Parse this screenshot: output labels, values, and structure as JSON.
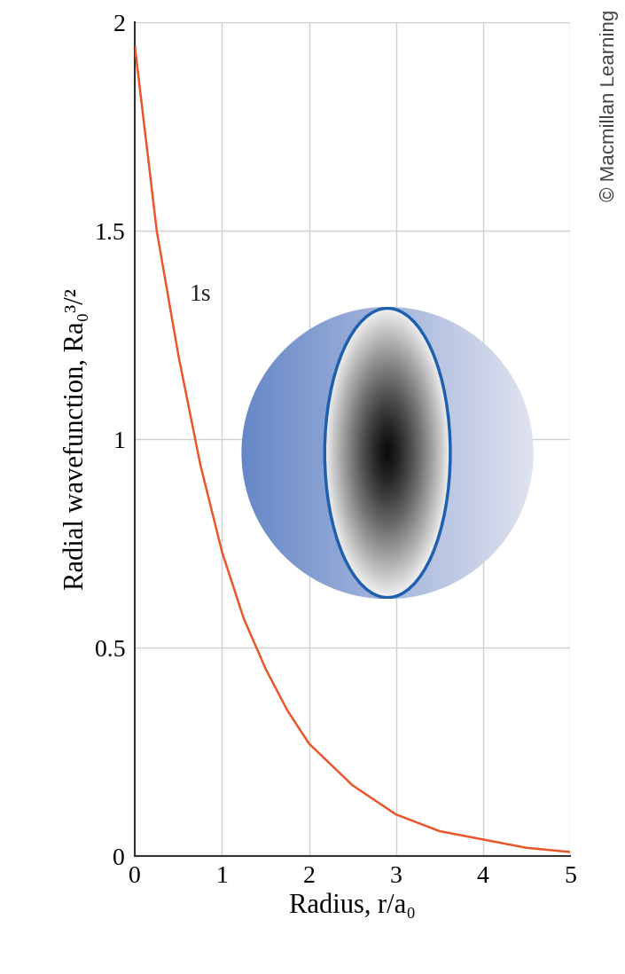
{
  "chart_data": {
    "type": "line",
    "x_label": "Radius, r/a₀",
    "y_label": "Radial wavefunction, Ra₀³/²",
    "x": [
      0,
      0.25,
      0.5,
      0.75,
      1,
      1.25,
      1.5,
      1.75,
      2,
      2.5,
      3,
      3.5,
      4,
      4.5,
      5
    ],
    "series": [
      {
        "name": "1s",
        "color": "#e8562a",
        "values": [
          1.94,
          1.5,
          1.2,
          0.94,
          0.73,
          0.57,
          0.45,
          0.35,
          0.27,
          0.17,
          0.1,
          0.06,
          0.04,
          0.02,
          0.01
        ]
      }
    ],
    "xlim": [
      0,
      5
    ],
    "xticks": [
      0,
      1,
      2,
      3,
      4,
      5
    ],
    "ylim": [
      0,
      2
    ],
    "yticks": [
      0,
      0.5,
      1,
      1.5,
      2
    ],
    "grid": true,
    "credit": "© Macmillan Learning"
  }
}
